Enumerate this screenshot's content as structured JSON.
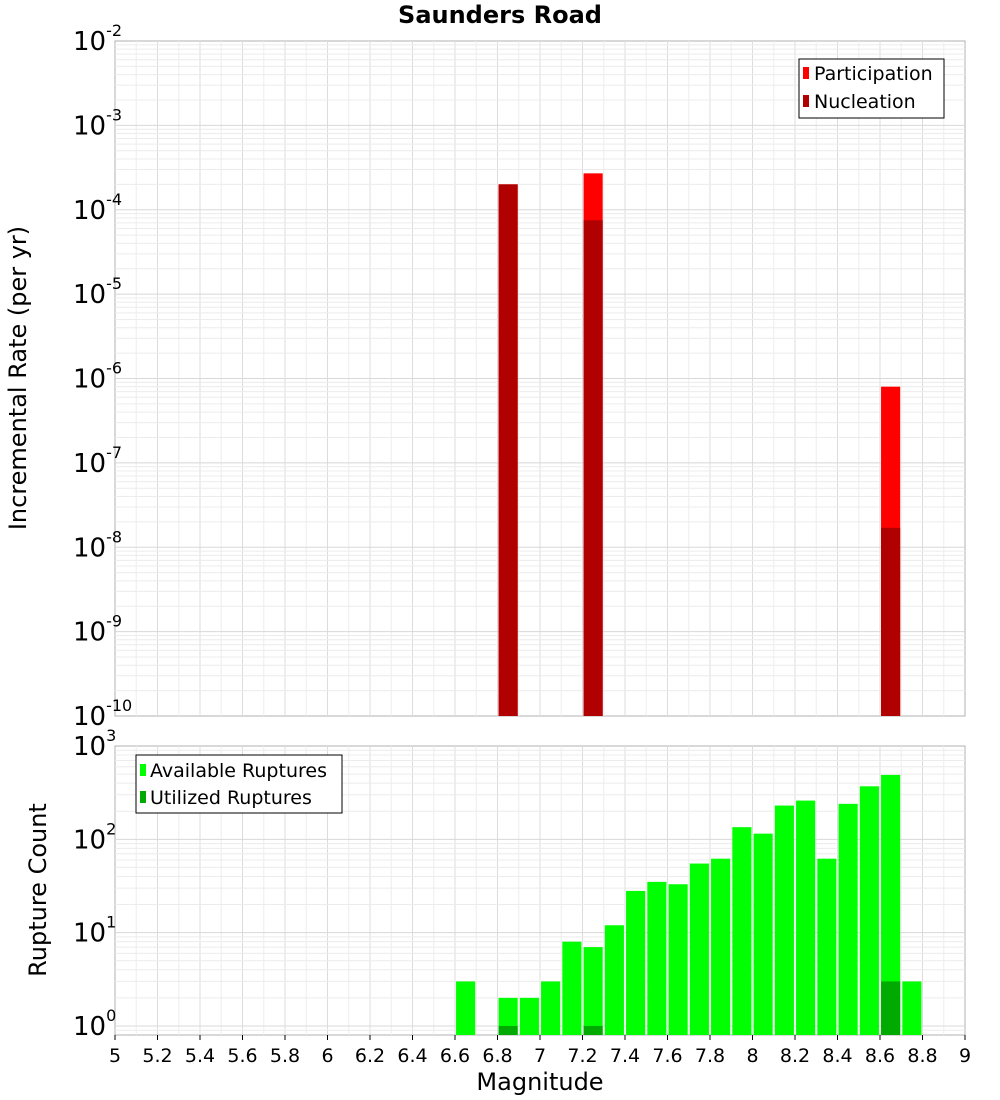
{
  "chart_data": [
    {
      "type": "bar",
      "title": "Saunders Road",
      "xlabel": "",
      "ylabel": "Incremental Rate (per yr)",
      "yscale": "log",
      "xlim": [
        5,
        9
      ],
      "ylim": [
        1e-10,
        0.01
      ],
      "ytick_base": "10",
      "ytick_exponents": [
        "-10",
        "-9",
        "-8",
        "-7",
        "-6",
        "-5",
        "-4",
        "-3",
        "-2"
      ],
      "bar_width": 0.09,
      "legend_position": "top-right",
      "grid": true,
      "series": [
        {
          "name": "Participation",
          "color": "#ff0000",
          "points": [
            {
              "x": 6.85,
              "y": 0.0002
            },
            {
              "x": 7.25,
              "y": 0.00027
            },
            {
              "x": 8.65,
              "y": 8e-07
            }
          ]
        },
        {
          "name": "Nucleation",
          "color": "#b00000",
          "points": [
            {
              "x": 6.85,
              "y": 0.0002
            },
            {
              "x": 7.25,
              "y": 7.5e-05
            },
            {
              "x": 8.65,
              "y": 1.7e-08
            }
          ]
        }
      ]
    },
    {
      "type": "bar",
      "title": "",
      "xlabel": "Magnitude",
      "ylabel": "Rupture Count",
      "yscale": "log",
      "xlim": [
        5,
        9
      ],
      "ylim": [
        0.8,
        1000
      ],
      "ytick_base": "10",
      "ytick_exponents": [
        "0",
        "1",
        "2",
        "3"
      ],
      "xticks": [
        "5",
        "5.2",
        "5.4",
        "5.6",
        "5.8",
        "6",
        "6.2",
        "6.4",
        "6.6",
        "6.8",
        "7",
        "7.2",
        "7.4",
        "7.6",
        "7.8",
        "8",
        "8.2",
        "8.4",
        "8.6",
        "8.8",
        "9"
      ],
      "bar_width": 0.09,
      "legend_position": "top-left",
      "grid": true,
      "series": [
        {
          "name": "Available Ruptures",
          "color": "#00ff00",
          "points": [
            {
              "x": 6.65,
              "y": 3
            },
            {
              "x": 6.85,
              "y": 2
            },
            {
              "x": 6.95,
              "y": 2
            },
            {
              "x": 7.05,
              "y": 3
            },
            {
              "x": 7.15,
              "y": 8
            },
            {
              "x": 7.25,
              "y": 7
            },
            {
              "x": 7.35,
              "y": 12
            },
            {
              "x": 7.45,
              "y": 28
            },
            {
              "x": 7.55,
              "y": 35
            },
            {
              "x": 7.65,
              "y": 33
            },
            {
              "x": 7.75,
              "y": 55
            },
            {
              "x": 7.85,
              "y": 62
            },
            {
              "x": 7.95,
              "y": 135
            },
            {
              "x": 8.05,
              "y": 115
            },
            {
              "x": 8.15,
              "y": 230
            },
            {
              "x": 8.25,
              "y": 260
            },
            {
              "x": 8.35,
              "y": 62
            },
            {
              "x": 8.45,
              "y": 240
            },
            {
              "x": 8.55,
              "y": 370
            },
            {
              "x": 8.65,
              "y": 490
            },
            {
              "x": 8.75,
              "y": 3
            }
          ]
        },
        {
          "name": "Utilized Ruptures",
          "color": "#00aa00",
          "points": [
            {
              "x": 6.85,
              "y": 1
            },
            {
              "x": 7.25,
              "y": 1
            },
            {
              "x": 8.65,
              "y": 3
            }
          ]
        }
      ]
    }
  ]
}
